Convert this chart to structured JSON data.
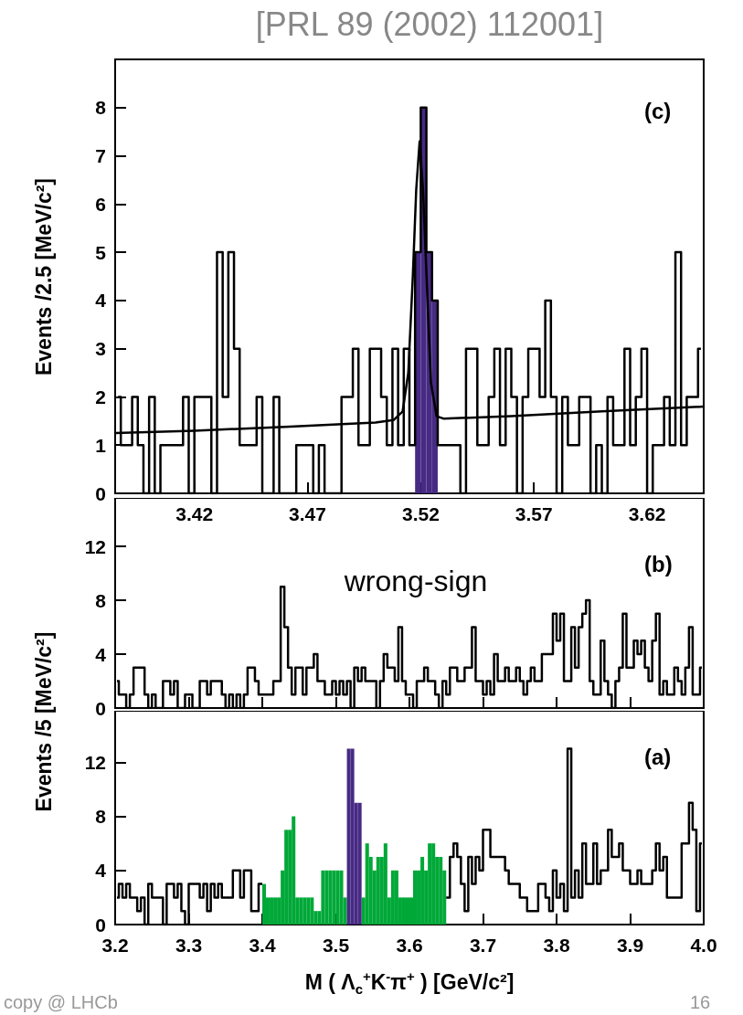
{
  "chart_data": [
    {
      "type": "step",
      "title": "[PRL 89 (2002) 112001]",
      "ylabel": "Events /2.5 [MeV/c²]",
      "annotations": [
        "(c)"
      ],
      "series": [
        {
          "type": "bar",
          "color": "#472a84",
          "x": [
            3.51875,
            3.52125,
            3.52375,
            3.52625
          ],
          "values": [
            5,
            8,
            5,
            4
          ]
        },
        {
          "color": "#000000",
          "x": [
            3.38625,
            3.38875,
            3.39125,
            3.39375,
            3.39625,
            3.39875,
            3.40125,
            3.40375,
            3.40625,
            3.40875,
            3.41125,
            3.41375,
            3.41625,
            3.41875,
            3.42125,
            3.42375,
            3.42625,
            3.42875,
            3.43125,
            3.43375,
            3.43625,
            3.43875,
            3.44125,
            3.44375,
            3.44625,
            3.44875,
            3.45125,
            3.45375,
            3.45625,
            3.45875,
            3.46125,
            3.46375,
            3.46625,
            3.46875,
            3.47125,
            3.47375,
            3.47625,
            3.47875,
            3.48125,
            3.48375,
            3.48625,
            3.48875,
            3.49125,
            3.49375,
            3.49625,
            3.49875,
            3.50125,
            3.50375,
            3.50625,
            3.50875,
            3.51125,
            3.51375,
            3.51625,
            3.51875,
            3.52125,
            3.52375,
            3.52625,
            3.52875,
            3.53125,
            3.53375,
            3.53625,
            3.53875,
            3.54125,
            3.54375,
            3.54625,
            3.54875,
            3.55125,
            3.55375,
            3.55625,
            3.55875,
            3.56125,
            3.56375,
            3.56625,
            3.56875,
            3.57125,
            3.57375,
            3.57625,
            3.57875,
            3.58125,
            3.58375,
            3.58625,
            3.58875,
            3.59125,
            3.59375,
            3.59625,
            3.59875,
            3.60125,
            3.60375,
            3.60625,
            3.60875,
            3.61125,
            3.61375,
            3.61625,
            3.61875,
            3.62125,
            3.62375,
            3.62625,
            3.62875,
            3.63125,
            3.63375,
            3.63625,
            3.63875,
            3.64125,
            3.64375
          ],
          "values": [
            2,
            1,
            1,
            2,
            1,
            0,
            2,
            0,
            1,
            1,
            1,
            1,
            2,
            0,
            2,
            2,
            2,
            0,
            5,
            2,
            5,
            3,
            1,
            1,
            1,
            2,
            0,
            0,
            2,
            0,
            0,
            0,
            1,
            1,
            1,
            0,
            1,
            0,
            0,
            0,
            2,
            2,
            3,
            1,
            1,
            3,
            3,
            2,
            1,
            3,
            1,
            3,
            1,
            5,
            8,
            5,
            4,
            1,
            1,
            1,
            1,
            0,
            3,
            3,
            1,
            1,
            2,
            3,
            1,
            3,
            2,
            0,
            2,
            3,
            3,
            2,
            4,
            2,
            0,
            2,
            1,
            1,
            2,
            2,
            0,
            1,
            0,
            2,
            1,
            1,
            3,
            1,
            2,
            3,
            0,
            1,
            1,
            2,
            1,
            5,
            1,
            2,
            2,
            3
          ]
        },
        {
          "type": "line",
          "color": "#000000",
          "x": [
            3.385,
            3.42,
            3.46,
            3.5,
            3.508,
            3.512,
            3.5145,
            3.5165,
            3.518,
            3.5195,
            3.521,
            3.523,
            3.5245,
            3.527,
            3.53,
            3.56,
            3.6,
            3.645
          ],
          "values": [
            1.25,
            1.3,
            1.38,
            1.47,
            1.52,
            1.7,
            2.5,
            4.5,
            6.3,
            7.3,
            6.3,
            4,
            2.3,
            1.6,
            1.55,
            1.6,
            1.7,
            1.8
          ]
        }
      ],
      "xlim": [
        3.385,
        3.645
      ],
      "xticks": [
        3.42,
        3.47,
        3.52,
        3.57,
        3.62
      ],
      "ylim": [
        0,
        9
      ],
      "yticks": [
        0,
        1,
        2,
        3,
        4,
        5,
        6,
        7,
        8
      ]
    },
    {
      "type": "step",
      "ylabel": "Events /5 [MeV/c²]",
      "annotations": [
        "wrong-sign",
        "(b)"
      ],
      "tick_labels": "y",
      "series": [
        {
          "color": "#000000",
          "x": [
            3.2025,
            3.2075,
            3.2125,
            3.2175,
            3.2225,
            3.2275,
            3.2325,
            3.2375,
            3.2425,
            3.2475,
            3.2525,
            3.2575,
            3.2625,
            3.2675,
            3.2725,
            3.2775,
            3.2825,
            3.2875,
            3.2925,
            3.2975,
            3.3025,
            3.3075,
            3.3125,
            3.3175,
            3.3225,
            3.3275,
            3.3325,
            3.3375,
            3.3425,
            3.3475,
            3.3525,
            3.3575,
            3.3625,
            3.3675,
            3.3725,
            3.3775,
            3.3825,
            3.3875,
            3.3925,
            3.3975,
            3.4025,
            3.4075,
            3.4125,
            3.4175,
            3.4225,
            3.4275,
            3.4325,
            3.4375,
            3.4425,
            3.4475,
            3.4525,
            3.4575,
            3.4625,
            3.4675,
            3.4725,
            3.4775,
            3.4825,
            3.4875,
            3.4925,
            3.4975,
            3.5025,
            3.5075,
            3.5125,
            3.5175,
            3.5225,
            3.5275,
            3.5325,
            3.5375,
            3.5425,
            3.5475,
            3.5525,
            3.5575,
            3.5625,
            3.5675,
            3.5725,
            3.5775,
            3.5825,
            3.5875,
            3.5925,
            3.5975,
            3.6025,
            3.6075,
            3.6125,
            3.6175,
            3.6225,
            3.6275,
            3.6325,
            3.6375,
            3.6425,
            3.6475,
            3.6525,
            3.6575,
            3.6625,
            3.6675,
            3.6725,
            3.6775,
            3.6825,
            3.6875,
            3.6925,
            3.6975,
            3.7025,
            3.7075,
            3.7125,
            3.7175,
            3.7225,
            3.7275,
            3.7325,
            3.7375,
            3.7425,
            3.7475,
            3.7525,
            3.7575,
            3.7625,
            3.7675,
            3.7725,
            3.7775,
            3.7825,
            3.7875,
            3.7925,
            3.7975,
            3.8025,
            3.8075,
            3.8125,
            3.8175,
            3.8225,
            3.8275,
            3.8325,
            3.8375,
            3.8425,
            3.8475,
            3.8525,
            3.8575,
            3.8625,
            3.8675,
            3.8725,
            3.8775,
            3.8825,
            3.8875,
            3.8925,
            3.8975,
            3.9025,
            3.9075,
            3.9125,
            3.9175,
            3.9225,
            3.9275,
            3.9325,
            3.9375,
            3.9425,
            3.9475,
            3.9525,
            3.9575,
            3.9625,
            3.9675,
            3.9725,
            3.9775,
            3.9825,
            3.9875,
            3.9925,
            3.9975
          ],
          "values": [
            2,
            1,
            1,
            0,
            1,
            3,
            3,
            3,
            1,
            0,
            1,
            0,
            0,
            2,
            2,
            1,
            2,
            0,
            0,
            1,
            1,
            0,
            0,
            2,
            2,
            1,
            2,
            2,
            2,
            1,
            0,
            1,
            0,
            1,
            0,
            1,
            3,
            3,
            2,
            1,
            1,
            1,
            1,
            2,
            2,
            9,
            6,
            3,
            1,
            3,
            3,
            1,
            3,
            3,
            4,
            2,
            2,
            1,
            1,
            2,
            1,
            2,
            1,
            2,
            0,
            3,
            2,
            3,
            2,
            2,
            2,
            0,
            2,
            4,
            3,
            3,
            2,
            6,
            2,
            1,
            1,
            0,
            2,
            2,
            3,
            2,
            2,
            1,
            0,
            2,
            1,
            3,
            3,
            2,
            2,
            3,
            3,
            6,
            2,
            2,
            1,
            2,
            1,
            4,
            2,
            2,
            3,
            2,
            2,
            3,
            2,
            1,
            2,
            3,
            2,
            2,
            4,
            4,
            4,
            7,
            5,
            7,
            2,
            2,
            6,
            3,
            6,
            7,
            8,
            2,
            1,
            1,
            5,
            2,
            1,
            0,
            2,
            3,
            7,
            3,
            3,
            5,
            4,
            5,
            3,
            2,
            5,
            7,
            1,
            2,
            1,
            1,
            3,
            2,
            1,
            3,
            6,
            1,
            1,
            3
          ]
        }
      ],
      "xlim": [
        3.2,
        4.0
      ],
      "xticks": [
        3.3,
        3.4,
        3.5,
        3.6,
        3.7,
        3.8,
        3.9
      ],
      "ylim": [
        0,
        15.6
      ],
      "yticks": [
        0,
        4,
        8,
        12
      ]
    },
    {
      "type": "step",
      "xlabel": "M ( Λ$_{c}$$^{+}$K$^{-}$π$^{+}$ )  [GeV/c²]",
      "annotations": [
        "(a)",
        "copy @ LHCb",
        "16"
      ],
      "series": [
        {
          "type": "bar",
          "color": "#00a838",
          "x": [
            3.4025,
            3.4075,
            3.4125,
            3.4175,
            3.4225,
            3.4275,
            3.4325,
            3.4375,
            3.4425,
            3.4475,
            3.4525,
            3.4575,
            3.4625,
            3.4675,
            3.4725,
            3.4775,
            3.4825,
            3.4875,
            3.4925,
            3.4975,
            3.5025,
            3.5075,
            3.5125,
            3.5375,
            3.5425,
            3.5475,
            3.5525,
            3.5575,
            3.5625,
            3.5675,
            3.5725,
            3.5775,
            3.5825,
            3.5875,
            3.5925,
            3.5975,
            3.6025,
            3.6075,
            3.6125,
            3.6175,
            3.6225,
            3.6275,
            3.6325,
            3.6375,
            3.6425,
            3.6475
          ],
          "values": [
            3,
            2,
            2,
            2,
            2,
            4,
            7,
            7,
            8,
            2,
            2,
            2,
            2,
            2,
            1,
            1,
            4,
            4,
            4,
            4,
            4,
            4,
            2,
            2,
            6,
            5,
            4,
            5,
            5,
            6,
            2,
            4,
            4,
            2,
            2,
            2,
            2,
            4,
            4,
            5,
            4,
            6,
            6,
            5,
            5,
            4
          ]
        },
        {
          "type": "bar",
          "color": "#472a84",
          "x": [
            3.5175,
            3.5225,
            3.5275,
            3.5325
          ],
          "values": [
            13,
            13,
            9,
            9
          ]
        },
        {
          "color": "#000000",
          "x": [
            3.2025,
            3.2075,
            3.2125,
            3.2175,
            3.2225,
            3.2275,
            3.2325,
            3.2375,
            3.2425,
            3.2475,
            3.2525,
            3.2575,
            3.2625,
            3.2675,
            3.2725,
            3.2775,
            3.2825,
            3.2875,
            3.2925,
            3.2975,
            3.3025,
            3.3075,
            3.3125,
            3.3175,
            3.3225,
            3.3275,
            3.3325,
            3.3375,
            3.3425,
            3.3475,
            3.3525,
            3.3575,
            3.3625,
            3.3675,
            3.3725,
            3.3775,
            3.3825,
            3.3875,
            3.3925,
            3.3975,
            3.4025,
            3.4075,
            3.4125,
            3.4175,
            3.4225,
            3.4275,
            3.4325,
            3.4375,
            3.4425,
            3.4475,
            3.4525,
            3.4575,
            3.4625,
            3.4675,
            3.4725,
            3.4775,
            3.4825,
            3.4875,
            3.4925,
            3.4975,
            3.5025,
            3.5075,
            3.5125,
            3.5175,
            3.5225,
            3.5275,
            3.5325,
            3.5375,
            3.5425,
            3.5475,
            3.5525,
            3.5575,
            3.5625,
            3.5675,
            3.5725,
            3.5775,
            3.5825,
            3.5875,
            3.5925,
            3.5975,
            3.6025,
            3.6075,
            3.6125,
            3.6175,
            3.6225,
            3.6275,
            3.6325,
            3.6375,
            3.6425,
            3.6475,
            3.6525,
            3.6575,
            3.6625,
            3.6675,
            3.6725,
            3.6775,
            3.6825,
            3.6875,
            3.6925,
            3.6975,
            3.7025,
            3.7075,
            3.7125,
            3.7175,
            3.7225,
            3.7275,
            3.7325,
            3.7375,
            3.7425,
            3.7475,
            3.7525,
            3.7575,
            3.7625,
            3.7675,
            3.7725,
            3.7775,
            3.7825,
            3.7875,
            3.7925,
            3.7975,
            3.8025,
            3.8075,
            3.8125,
            3.8175,
            3.8225,
            3.8275,
            3.8325,
            3.8375,
            3.8425,
            3.8475,
            3.8525,
            3.8575,
            3.8625,
            3.8675,
            3.8725,
            3.8775,
            3.8825,
            3.8875,
            3.8925,
            3.8975,
            3.9025,
            3.9075,
            3.9125,
            3.9175,
            3.9225,
            3.9275,
            3.9325,
            3.9375,
            3.9425,
            3.9475,
            3.9525,
            3.9575,
            3.9625,
            3.9675,
            3.9725,
            3.9775,
            3.9825,
            3.9875,
            3.9925,
            3.9975
          ],
          "values": [
            2,
            3,
            2,
            3,
            2,
            2,
            1,
            2,
            0,
            3,
            2,
            2,
            2,
            0,
            3,
            3,
            2,
            3,
            1,
            0,
            3,
            3,
            3,
            2,
            3,
            1,
            3,
            2,
            3,
            2,
            2,
            2,
            4,
            4,
            2,
            4,
            4,
            1,
            1,
            3,
            null,
            null,
            null,
            null,
            null,
            null,
            null,
            null,
            null,
            null,
            null,
            null,
            null,
            null,
            null,
            null,
            null,
            null,
            null,
            null,
            null,
            null,
            null,
            null,
            null,
            null,
            null,
            null,
            null,
            null,
            null,
            null,
            null,
            null,
            null,
            null,
            null,
            null,
            null,
            null,
            null,
            null,
            null,
            null,
            null,
            null,
            null,
            null,
            null,
            null,
            2,
            5,
            6,
            5,
            3,
            1,
            5,
            3,
            5,
            4,
            7,
            7,
            5,
            5,
            5,
            5,
            4,
            3,
            3,
            3,
            2,
            2,
            1,
            1,
            1,
            3,
            3,
            2,
            1,
            4,
            2,
            3,
            1,
            13,
            2,
            4,
            2,
            6,
            3,
            3,
            6,
            3,
            4,
            4,
            7,
            5,
            5,
            6,
            4,
            4,
            3,
            3,
            4,
            3,
            3,
            3,
            4,
            6,
            4,
            5,
            2,
            2,
            2,
            2,
            6,
            6,
            9,
            7,
            1,
            6
          ]
        }
      ],
      "xlim": [
        3.2,
        4.0
      ],
      "xticks": [
        3.2,
        3.3,
        3.4,
        3.5,
        3.6,
        3.7,
        3.8,
        3.9,
        {
          "value": 4.0,
          "label": "4.0"
        }
      ],
      "ylim": [
        0,
        15.8
      ],
      "yticks": [
        0,
        4,
        8,
        12
      ]
    }
  ]
}
